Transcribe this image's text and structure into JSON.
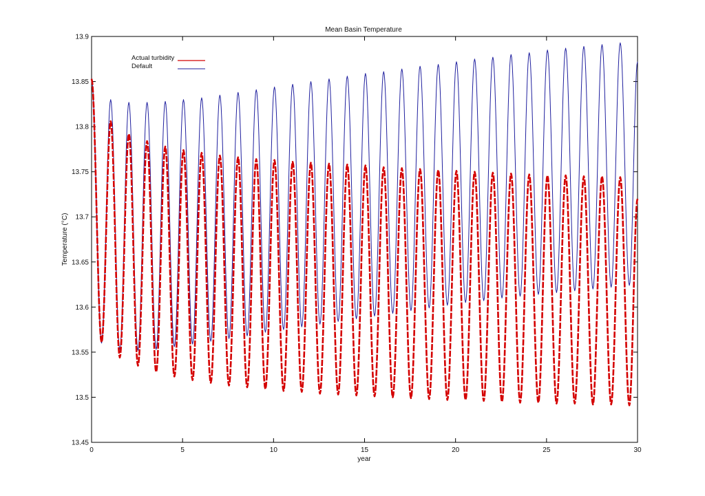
{
  "chart_data": {
    "type": "line",
    "title": "Mean Basin Temperature",
    "xlabel": "year",
    "ylabel": "Temperature (°C)",
    "xlim": [
      0,
      30
    ],
    "ylim": [
      13.45,
      13.9
    ],
    "x_ticks": [
      0,
      5,
      10,
      15,
      20,
      25,
      30
    ],
    "y_ticks": [
      13.45,
      13.5,
      13.55,
      13.6,
      13.65,
      13.7,
      13.75,
      13.8,
      13.85,
      13.9
    ],
    "x_tick_labels": [
      "0",
      "5",
      "10",
      "15",
      "20",
      "25",
      "30"
    ],
    "y_tick_labels": [
      "13.45",
      "13.5",
      "13.55",
      "13.6",
      "13.65",
      "13.7",
      "13.75",
      "13.8",
      "13.85",
      "13.9"
    ],
    "grid": false,
    "legend_position": "top-left",
    "series": [
      {
        "name": "Actual turbidity",
        "color": "#d40000",
        "style": "dashed",
        "start_value": 13.853,
        "peaks": [
          [
            1.05,
            13.806
          ],
          [
            2.05,
            13.792
          ],
          [
            3.05,
            13.784
          ],
          [
            4.05,
            13.778
          ],
          [
            5.05,
            13.774
          ],
          [
            6.05,
            13.771
          ],
          [
            7.05,
            13.768
          ],
          [
            8.05,
            13.766
          ],
          [
            9.05,
            13.764
          ],
          [
            10.05,
            13.763
          ],
          [
            11.05,
            13.761
          ],
          [
            12.05,
            13.76
          ],
          [
            13.05,
            13.759
          ],
          [
            14.05,
            13.758
          ],
          [
            15.05,
            13.757
          ],
          [
            16.05,
            13.755
          ],
          [
            17.05,
            13.754
          ],
          [
            18.05,
            13.753
          ],
          [
            19.05,
            13.752
          ],
          [
            20.05,
            13.751
          ],
          [
            21.05,
            13.75
          ],
          [
            22.05,
            13.749
          ],
          [
            23.05,
            13.748
          ],
          [
            24.05,
            13.747
          ],
          [
            25.05,
            13.746
          ],
          [
            26.05,
            13.746
          ],
          [
            27.05,
            13.745
          ],
          [
            28.05,
            13.745
          ],
          [
            29.05,
            13.744
          ]
        ],
        "troughs": [
          [
            0.55,
            13.561
          ],
          [
            1.55,
            13.544
          ],
          [
            2.55,
            13.535
          ],
          [
            3.55,
            13.528
          ],
          [
            4.55,
            13.523
          ],
          [
            5.55,
            13.519
          ],
          [
            6.55,
            13.516
          ],
          [
            7.55,
            13.513
          ],
          [
            8.55,
            13.511
          ],
          [
            9.55,
            13.509
          ],
          [
            10.55,
            13.507
          ],
          [
            11.55,
            13.506
          ],
          [
            12.55,
            13.504
          ],
          [
            13.55,
            13.503
          ],
          [
            14.55,
            13.502
          ],
          [
            15.55,
            13.501
          ],
          [
            16.55,
            13.5
          ],
          [
            17.55,
            13.499
          ],
          [
            18.55,
            13.498
          ],
          [
            19.55,
            13.497
          ],
          [
            20.55,
            13.497
          ],
          [
            21.55,
            13.496
          ],
          [
            22.55,
            13.495
          ],
          [
            23.55,
            13.494
          ],
          [
            24.55,
            13.494
          ],
          [
            25.55,
            13.493
          ],
          [
            26.55,
            13.493
          ],
          [
            27.55,
            13.492
          ],
          [
            28.55,
            13.492
          ],
          [
            29.55,
            13.491
          ]
        ],
        "end_value": 13.72
      },
      {
        "name": "Default",
        "color": "#1f1f9e",
        "style": "solid",
        "start_value": 13.853,
        "peaks": [
          [
            1.05,
            13.83
          ],
          [
            2.05,
            13.827
          ],
          [
            3.05,
            13.827
          ],
          [
            4.05,
            13.828
          ],
          [
            5.05,
            13.83
          ],
          [
            6.05,
            13.832
          ],
          [
            7.05,
            13.835
          ],
          [
            8.05,
            13.838
          ],
          [
            9.05,
            13.841
          ],
          [
            10.05,
            13.844
          ],
          [
            11.05,
            13.847
          ],
          [
            12.05,
            13.85
          ],
          [
            13.05,
            13.853
          ],
          [
            14.05,
            13.856
          ],
          [
            15.05,
            13.859
          ],
          [
            16.05,
            13.861
          ],
          [
            17.05,
            13.864
          ],
          [
            18.05,
            13.867
          ],
          [
            19.05,
            13.869
          ],
          [
            20.05,
            13.872
          ],
          [
            21.05,
            13.875
          ],
          [
            22.05,
            13.877
          ],
          [
            23.05,
            13.88
          ],
          [
            24.05,
            13.882
          ],
          [
            25.05,
            13.885
          ],
          [
            26.05,
            13.887
          ],
          [
            27.05,
            13.889
          ],
          [
            28.05,
            13.891
          ],
          [
            29.05,
            13.893
          ]
        ],
        "troughs": [
          [
            0.55,
            13.56
          ],
          [
            1.55,
            13.553
          ],
          [
            2.55,
            13.552
          ],
          [
            3.55,
            13.553
          ],
          [
            4.55,
            13.556
          ],
          [
            5.55,
            13.559
          ],
          [
            6.55,
            13.562
          ],
          [
            7.55,
            13.565
          ],
          [
            8.55,
            13.568
          ],
          [
            9.55,
            13.572
          ],
          [
            10.55,
            13.575
          ],
          [
            11.55,
            13.578
          ],
          [
            12.55,
            13.581
          ],
          [
            13.55,
            13.584
          ],
          [
            14.55,
            13.587
          ],
          [
            15.55,
            13.59
          ],
          [
            16.55,
            13.593
          ],
          [
            17.55,
            13.596
          ],
          [
            18.55,
            13.599
          ],
          [
            19.55,
            13.602
          ],
          [
            20.55,
            13.605
          ],
          [
            21.55,
            13.607
          ],
          [
            22.55,
            13.61
          ],
          [
            23.55,
            13.612
          ],
          [
            24.55,
            13.614
          ],
          [
            25.55,
            13.616
          ],
          [
            26.55,
            13.618
          ],
          [
            27.55,
            13.62
          ],
          [
            28.55,
            13.622
          ],
          [
            29.55,
            13.624
          ]
        ],
        "end_value": 13.872
      }
    ]
  }
}
